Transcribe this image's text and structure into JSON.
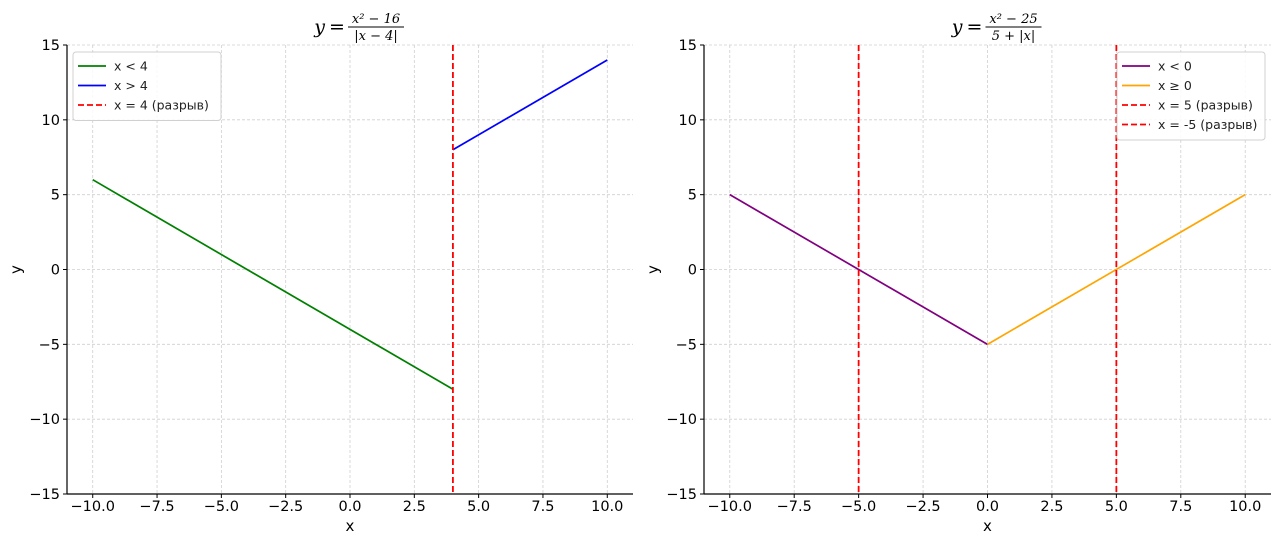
{
  "chart_data": [
    {
      "type": "line",
      "title": "y = (x² − 16) / |x − 4|",
      "title_parts": {
        "lhs": "y",
        "num": "x² − 16",
        "den": "|x − 4|"
      },
      "xlabel": "x",
      "ylabel": "y",
      "xlim": [
        -11,
        11
      ],
      "ylim": [
        -15,
        15
      ],
      "xticks": [
        -10,
        -7.5,
        -5,
        -2.5,
        0,
        2.5,
        5,
        7.5,
        10
      ],
      "xtick_labels": [
        "−10.0",
        "−7.5",
        "−5.0",
        "−2.5",
        "0.0",
        "2.5",
        "5.0",
        "7.5",
        "10.0"
      ],
      "yticks": [
        -15,
        -10,
        -5,
        0,
        5,
        10,
        15
      ],
      "ytick_labels": [
        "−15",
        "−10",
        "−5",
        "0",
        "5",
        "10",
        "15"
      ],
      "grid": true,
      "legend_position": "top-left",
      "series": [
        {
          "name": "x < 4",
          "color": "#008000",
          "style": "solid",
          "x": [
            -10,
            4
          ],
          "y": [
            6,
            -8
          ]
        },
        {
          "name": "x > 4",
          "color": "#0000ff",
          "style": "solid",
          "x": [
            4,
            10
          ],
          "y": [
            8,
            14
          ]
        },
        {
          "name": "x = 4 (разрыв)",
          "color": "#ff0000",
          "style": "dashed",
          "vline": 4
        }
      ]
    },
    {
      "type": "line",
      "title": "y = (x² − 25) / (5 + |x|)",
      "title_parts": {
        "lhs": "y",
        "num": "x² − 25",
        "den": "5 + |x|"
      },
      "xlabel": "x",
      "ylabel": "y",
      "xlim": [
        -11,
        11
      ],
      "ylim": [
        -15,
        15
      ],
      "xticks": [
        -10,
        -7.5,
        -5,
        -2.5,
        0,
        2.5,
        5,
        7.5,
        10
      ],
      "xtick_labels": [
        "−10.0",
        "−7.5",
        "−5.0",
        "−2.5",
        "0.0",
        "2.5",
        "5.0",
        "7.5",
        "10.0"
      ],
      "yticks": [
        -15,
        -10,
        -5,
        0,
        5,
        10,
        15
      ],
      "ytick_labels": [
        "−15",
        "−10",
        "−5",
        "0",
        "5",
        "10",
        "15"
      ],
      "grid": true,
      "legend_position": "top-right",
      "series": [
        {
          "name": "x < 0",
          "color": "#800080",
          "style": "solid",
          "x": [
            -10,
            0
          ],
          "y": [
            5,
            -5
          ]
        },
        {
          "name": "x ≥ 0",
          "color": "#ffa500",
          "style": "solid",
          "x": [
            0,
            10
          ],
          "y": [
            -5,
            5
          ]
        },
        {
          "name": "x = 5 (разрыв)",
          "color": "#ff0000",
          "style": "dashed",
          "vline": 5
        },
        {
          "name": "x = -5 (разрыв)",
          "color": "#ff0000",
          "style": "dashed",
          "vline": -5
        }
      ]
    }
  ]
}
